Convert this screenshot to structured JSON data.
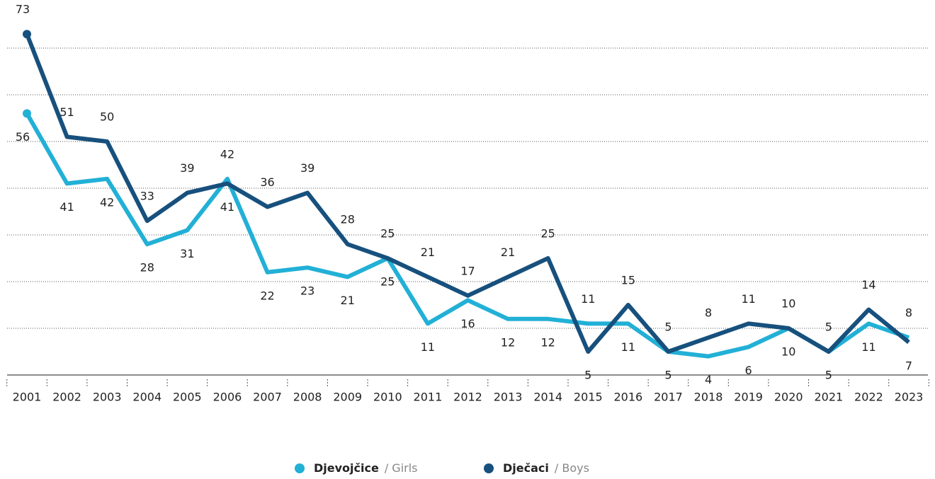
{
  "chart_data": {
    "type": "line",
    "categories": [
      "2001",
      "2002",
      "2003",
      "2004",
      "2005",
      "2006",
      "2007",
      "2008",
      "2009",
      "2010",
      "2011",
      "2012",
      "2013",
      "2014",
      "2015",
      "2016",
      "2017",
      "2018",
      "2019",
      "2020",
      "2021",
      "2022",
      "2023"
    ],
    "series": [
      {
        "name": "Djevojčice",
        "name_en": "/ Girls",
        "color": "#22b0d6",
        "values": [
          56,
          41,
          42,
          28,
          31,
          42,
          22,
          23,
          21,
          25,
          11,
          16,
          12,
          12,
          11,
          11,
          5,
          4,
          6,
          10,
          5,
          11,
          8
        ]
      },
      {
        "name": "Dječaci",
        "name_en": "/ Boys",
        "color": "#17507d",
        "values": [
          73,
          51,
          50,
          33,
          39,
          41,
          36,
          39,
          28,
          25,
          21,
          17,
          21,
          25,
          5,
          15,
          5,
          8,
          11,
          10,
          5,
          14,
          7
        ]
      }
    ],
    "ylim": [
      0,
      75
    ],
    "yticks": [
      0,
      10,
      20,
      30,
      40,
      50,
      60,
      70
    ],
    "grid": true,
    "legend": "bottom"
  }
}
